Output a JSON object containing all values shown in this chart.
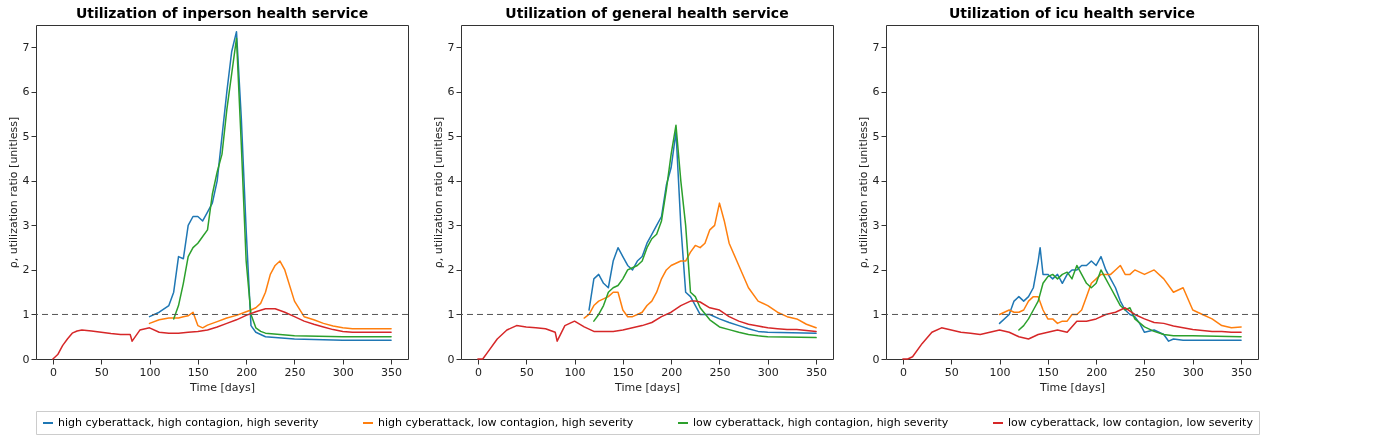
{
  "chart_data": [
    {
      "type": "line",
      "title": "Utilization of inperson health service",
      "xlabel": "Time [days]",
      "ylabel": "ρ, utilization ratio [unitless]",
      "xlim": [
        -17.5,
        367.5
      ],
      "xticks": [
        0,
        50,
        100,
        150,
        200,
        250,
        300,
        350
      ],
      "ylim": [
        0,
        7.5
      ],
      "yticks": [
        0,
        1,
        2,
        3,
        4,
        5,
        6,
        7
      ],
      "grid": false,
      "legend": "bottom",
      "ref_lines": [
        {
          "axis": "y",
          "value": 1,
          "color": "#555555",
          "line_style": "dashed"
        }
      ],
      "series": [
        {
          "name": "high cyberattack, high contagion, high severity",
          "color": "#1f77b4",
          "x": [
            100,
            110,
            120,
            125,
            130,
            135,
            140,
            145,
            150,
            155,
            160,
            165,
            170,
            175,
            180,
            185,
            190,
            195,
            200,
            205,
            210,
            215,
            220,
            250,
            300,
            350
          ],
          "values": [
            0.95,
            1.05,
            1.2,
            1.5,
            2.3,
            2.25,
            3.0,
            3.2,
            3.2,
            3.1,
            3.3,
            3.5,
            4.0,
            5.0,
            6.0,
            6.9,
            7.35,
            5.4,
            2.9,
            0.75,
            0.6,
            0.55,
            0.5,
            0.45,
            0.42,
            0.42
          ]
        },
        {
          "name": "high cyberattack, low contagion, high severity",
          "color": "#ff7f0e",
          "x": [
            100,
            110,
            120,
            130,
            135,
            140,
            145,
            150,
            155,
            160,
            170,
            180,
            190,
            200,
            205,
            210,
            215,
            220,
            225,
            230,
            235,
            240,
            250,
            260,
            270,
            280,
            290,
            300,
            310,
            320,
            350
          ],
          "values": [
            0.8,
            0.88,
            0.92,
            0.92,
            0.95,
            0.97,
            1.05,
            0.75,
            0.7,
            0.76,
            0.84,
            0.92,
            0.98,
            1.06,
            1.1,
            1.15,
            1.25,
            1.5,
            1.9,
            2.1,
            2.2,
            2.0,
            1.3,
            0.95,
            0.88,
            0.8,
            0.74,
            0.7,
            0.68,
            0.68,
            0.68
          ]
        },
        {
          "name": "low cyberattack, high contagion, high severity",
          "color": "#2ca02c",
          "x": [
            125,
            130,
            135,
            140,
            145,
            150,
            155,
            160,
            165,
            170,
            175,
            180,
            185,
            190,
            195,
            200,
            205,
            210,
            215,
            220,
            250,
            300,
            350
          ],
          "values": [
            0.9,
            1.2,
            1.7,
            2.3,
            2.5,
            2.6,
            2.75,
            2.9,
            3.7,
            4.2,
            4.6,
            5.6,
            6.4,
            7.2,
            4.8,
            2.2,
            1.0,
            0.7,
            0.62,
            0.58,
            0.52,
            0.5,
            0.5
          ]
        },
        {
          "name": "low cyberattack, low contagion, low severity",
          "color": "#d62728",
          "x": [
            0,
            5,
            10,
            15,
            20,
            25,
            30,
            40,
            50,
            60,
            70,
            80,
            82,
            90,
            100,
            110,
            120,
            130,
            140,
            150,
            160,
            170,
            180,
            190,
            200,
            210,
            220,
            230,
            240,
            250,
            260,
            270,
            280,
            290,
            300,
            310,
            320,
            350
          ],
          "values": [
            0,
            0.1,
            0.3,
            0.45,
            0.58,
            0.63,
            0.65,
            0.63,
            0.6,
            0.57,
            0.55,
            0.55,
            0.4,
            0.65,
            0.7,
            0.6,
            0.58,
            0.58,
            0.6,
            0.62,
            0.65,
            0.72,
            0.8,
            0.88,
            0.98,
            1.06,
            1.13,
            1.13,
            1.05,
            0.95,
            0.85,
            0.78,
            0.72,
            0.66,
            0.62,
            0.6,
            0.6,
            0.6
          ]
        }
      ]
    },
    {
      "type": "line",
      "title": "Utilization of general health service",
      "xlabel": "Time [days]",
      "ylabel": "ρ, utilization ratio [unitless]",
      "xlim": [
        -17.5,
        367.5
      ],
      "xticks": [
        0,
        50,
        100,
        150,
        200,
        250,
        300,
        350
      ],
      "ylim": [
        0,
        7.5
      ],
      "yticks": [
        0,
        1,
        2,
        3,
        4,
        5,
        6,
        7
      ],
      "grid": false,
      "legend": "bottom",
      "ref_lines": [
        {
          "axis": "y",
          "value": 1,
          "color": "#555555",
          "line_style": "dashed"
        }
      ],
      "series": [
        {
          "name": "high cyberattack, high contagion, high severity",
          "color": "#1f77b4",
          "x": [
            115,
            120,
            125,
            130,
            135,
            140,
            145,
            150,
            155,
            160,
            165,
            170,
            175,
            180,
            185,
            190,
            195,
            200,
            205,
            210,
            215,
            220,
            230,
            240,
            250,
            260,
            270,
            280,
            290,
            300,
            350
          ],
          "values": [
            1.1,
            1.8,
            1.9,
            1.7,
            1.6,
            2.2,
            2.5,
            2.3,
            2.1,
            2.0,
            2.2,
            2.3,
            2.6,
            2.8,
            3.0,
            3.2,
            3.9,
            4.3,
            5.1,
            3.0,
            1.5,
            1.4,
            1.0,
            1.0,
            0.9,
            0.82,
            0.75,
            0.68,
            0.62,
            0.6,
            0.58
          ]
        },
        {
          "name": "high cyberattack, low contagion, high severity",
          "color": "#ff7f0e",
          "x": [
            110,
            115,
            120,
            125,
            130,
            135,
            140,
            145,
            150,
            155,
            160,
            165,
            170,
            175,
            180,
            185,
            190,
            195,
            200,
            205,
            210,
            215,
            220,
            225,
            230,
            235,
            240,
            245,
            250,
            255,
            260,
            270,
            280,
            290,
            300,
            310,
            320,
            330,
            340,
            350
          ],
          "values": [
            0.92,
            1.0,
            1.2,
            1.3,
            1.35,
            1.4,
            1.5,
            1.5,
            1.1,
            0.95,
            0.95,
            1.0,
            1.05,
            1.2,
            1.3,
            1.5,
            1.8,
            2.0,
            2.1,
            2.15,
            2.2,
            2.2,
            2.4,
            2.55,
            2.5,
            2.6,
            2.9,
            3.0,
            3.5,
            3.1,
            2.6,
            2.1,
            1.6,
            1.3,
            1.2,
            1.05,
            0.95,
            0.9,
            0.78,
            0.7
          ]
        },
        {
          "name": "low cyberattack, high contagion, high severity",
          "color": "#2ca02c",
          "x": [
            120,
            125,
            130,
            135,
            140,
            145,
            150,
            155,
            160,
            165,
            170,
            175,
            180,
            185,
            190,
            195,
            200,
            205,
            210,
            215,
            220,
            225,
            230,
            240,
            250,
            260,
            270,
            280,
            290,
            300,
            350
          ],
          "values": [
            0.85,
            1.0,
            1.2,
            1.5,
            1.6,
            1.65,
            1.8,
            2.0,
            2.05,
            2.1,
            2.2,
            2.5,
            2.7,
            2.8,
            3.1,
            3.8,
            4.6,
            5.25,
            4.0,
            3.0,
            1.5,
            1.4,
            1.15,
            0.88,
            0.72,
            0.66,
            0.6,
            0.55,
            0.52,
            0.5,
            0.48
          ]
        },
        {
          "name": "low cyberattack, low contagion, low severity",
          "color": "#d62728",
          "x": [
            0,
            5,
            10,
            20,
            30,
            40,
            50,
            60,
            70,
            80,
            82,
            90,
            100,
            110,
            120,
            130,
            140,
            150,
            160,
            170,
            180,
            190,
            200,
            210,
            220,
            225,
            230,
            240,
            250,
            260,
            270,
            280,
            290,
            300,
            310,
            320,
            330,
            340,
            350
          ],
          "values": [
            0,
            0,
            0.15,
            0.45,
            0.65,
            0.75,
            0.72,
            0.7,
            0.68,
            0.6,
            0.4,
            0.75,
            0.85,
            0.72,
            0.62,
            0.62,
            0.62,
            0.65,
            0.7,
            0.75,
            0.82,
            0.95,
            1.05,
            1.2,
            1.3,
            1.3,
            1.28,
            1.15,
            1.1,
            0.95,
            0.85,
            0.78,
            0.74,
            0.7,
            0.68,
            0.66,
            0.66,
            0.64,
            0.62
          ]
        }
      ]
    },
    {
      "type": "line",
      "title": "Utilization of icu health service",
      "xlabel": "Time [days]",
      "ylabel": "ρ, utilization ratio [unitless]",
      "xlim": [
        -17.5,
        367.5
      ],
      "xticks": [
        0,
        50,
        100,
        150,
        200,
        250,
        300,
        350
      ],
      "ylim": [
        0,
        7.5
      ],
      "yticks": [
        0,
        1,
        2,
        3,
        4,
        5,
        6,
        7
      ],
      "grid": false,
      "legend": "bottom",
      "ref_lines": [
        {
          "axis": "y",
          "value": 1,
          "color": "#555555",
          "line_style": "dashed"
        }
      ],
      "series": [
        {
          "name": "high cyberattack, high contagion, high severity",
          "color": "#1f77b4",
          "x": [
            100,
            110,
            115,
            120,
            125,
            130,
            135,
            140,
            142,
            145,
            150,
            155,
            160,
            165,
            170,
            175,
            180,
            185,
            190,
            195,
            200,
            205,
            210,
            215,
            220,
            225,
            230,
            235,
            240,
            245,
            250,
            260,
            270,
            275,
            280,
            290,
            300,
            350
          ],
          "values": [
            0.8,
            1.0,
            1.3,
            1.4,
            1.3,
            1.4,
            1.6,
            2.2,
            2.5,
            1.9,
            1.9,
            1.8,
            1.9,
            1.7,
            1.9,
            2.0,
            2.0,
            2.1,
            2.1,
            2.2,
            2.1,
            2.3,
            2.0,
            1.8,
            1.6,
            1.3,
            1.1,
            1.0,
            0.95,
            0.8,
            0.6,
            0.65,
            0.55,
            0.4,
            0.45,
            0.42,
            0.42,
            0.42
          ]
        },
        {
          "name": "high cyberattack, low contagion, high severity",
          "color": "#ff7f0e",
          "x": [
            100,
            110,
            115,
            120,
            125,
            130,
            135,
            140,
            145,
            150,
            155,
            160,
            165,
            170,
            175,
            180,
            185,
            190,
            195,
            200,
            205,
            210,
            215,
            220,
            225,
            230,
            235,
            240,
            250,
            260,
            270,
            280,
            290,
            300,
            310,
            320,
            330,
            340,
            350
          ],
          "values": [
            1.0,
            1.1,
            1.05,
            1.05,
            1.1,
            1.3,
            1.4,
            1.4,
            1.1,
            0.9,
            0.9,
            0.8,
            0.85,
            0.85,
            1.0,
            1.0,
            1.1,
            1.4,
            1.7,
            1.8,
            1.9,
            1.9,
            1.9,
            2.0,
            2.1,
            1.9,
            1.9,
            2.0,
            1.9,
            2.0,
            1.8,
            1.5,
            1.6,
            1.1,
            1.0,
            0.9,
            0.75,
            0.7,
            0.72
          ]
        },
        {
          "name": "low cyberattack, high contagion, high severity",
          "color": "#2ca02c",
          "x": [
            120,
            125,
            130,
            135,
            140,
            145,
            150,
            155,
            160,
            165,
            170,
            175,
            180,
            185,
            190,
            195,
            200,
            205,
            210,
            215,
            220,
            225,
            230,
            235,
            240,
            250,
            260,
            270,
            280,
            290,
            300,
            350
          ],
          "values": [
            0.65,
            0.75,
            0.9,
            1.1,
            1.3,
            1.7,
            1.85,
            1.9,
            1.8,
            1.9,
            1.95,
            1.8,
            2.1,
            1.9,
            1.7,
            1.6,
            1.7,
            2.0,
            1.8,
            1.6,
            1.4,
            1.2,
            1.1,
            1.15,
            0.9,
            0.72,
            0.62,
            0.55,
            0.52,
            0.52,
            0.52,
            0.5
          ]
        },
        {
          "name": "low cyberattack, low contagion, low severity",
          "color": "#d62728",
          "x": [
            0,
            5,
            10,
            20,
            30,
            40,
            50,
            60,
            70,
            80,
            90,
            100,
            110,
            120,
            130,
            140,
            150,
            160,
            170,
            180,
            190,
            200,
            210,
            220,
            230,
            240,
            250,
            260,
            270,
            280,
            290,
            300,
            310,
            320,
            330,
            340,
            350
          ],
          "values": [
            0,
            0,
            0.05,
            0.35,
            0.6,
            0.7,
            0.65,
            0.6,
            0.58,
            0.55,
            0.6,
            0.65,
            0.6,
            0.5,
            0.45,
            0.55,
            0.6,
            0.65,
            0.6,
            0.85,
            0.85,
            0.9,
            1.0,
            1.05,
            1.15,
            1.0,
            0.9,
            0.82,
            0.8,
            0.74,
            0.7,
            0.66,
            0.64,
            0.62,
            0.62,
            0.6,
            0.6
          ]
        }
      ]
    }
  ]
}
